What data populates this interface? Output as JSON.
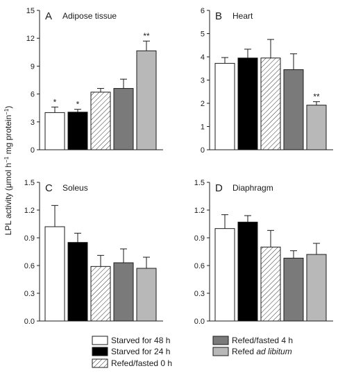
{
  "ylabel": {
    "prefix": "LPL activity (μmol h",
    "sup1": "−1",
    "middle": " mg protein",
    "sup2": "−1",
    "suffix": ")"
  },
  "series_styles": [
    {
      "fill": "#ffffff",
      "hatch": false
    },
    {
      "fill": "#000000",
      "hatch": false
    },
    {
      "fill": "#ffffff",
      "hatch": true
    },
    {
      "fill": "#7a7a7a",
      "hatch": false
    },
    {
      "fill": "#b8b8b8",
      "hatch": false
    }
  ],
  "legend": {
    "items": [
      {
        "text": "Starved for 48 h",
        "italic": ""
      },
      {
        "text": "Starved for 24 h",
        "italic": ""
      },
      {
        "text": "Refed/fasted 0 h",
        "italic": ""
      },
      {
        "text": "Refed/fasted 4 h",
        "italic": ""
      },
      {
        "text": "Refed ",
        "italic": "ad libitum"
      }
    ]
  },
  "chart_data": [
    {
      "type": "bar",
      "letter": "A",
      "title": "Adipose tissue",
      "ylim": [
        0,
        15
      ],
      "yticks": [
        "0",
        "3",
        "6",
        "9",
        "12",
        "15"
      ],
      "values": [
        4.0,
        4.05,
        6.2,
        6.6,
        10.65
      ],
      "errors": [
        0.6,
        0.3,
        0.4,
        1.0,
        1.05
      ],
      "annotations": [
        "*",
        "*",
        "",
        "",
        "**"
      ]
    },
    {
      "type": "bar",
      "letter": "B",
      "title": "Heart",
      "ylim": [
        0,
        6
      ],
      "yticks": [
        "0",
        "1",
        "2",
        "3",
        "4",
        "5",
        "6"
      ],
      "values": [
        3.72,
        3.95,
        3.95,
        3.45,
        1.92
      ],
      "errors": [
        0.25,
        0.38,
        0.8,
        0.68,
        0.15
      ],
      "annotations": [
        "",
        "",
        "",
        "",
        "**"
      ]
    },
    {
      "type": "bar",
      "letter": "C",
      "title": "Soleus",
      "ylim": [
        0,
        1.5
      ],
      "yticks": [
        "0.0",
        "0.3",
        "0.6",
        "0.9",
        "1.2",
        "1.5"
      ],
      "values": [
        1.02,
        0.85,
        0.59,
        0.63,
        0.57
      ],
      "errors": [
        0.23,
        0.1,
        0.12,
        0.15,
        0.12
      ],
      "annotations": [
        "",
        "",
        "",
        "",
        ""
      ]
    },
    {
      "type": "bar",
      "letter": "D",
      "title": "Diaphragm",
      "ylim": [
        0,
        1.5
      ],
      "yticks": [
        "0.0",
        "0.3",
        "0.6",
        "0.9",
        "1.2",
        "1.5"
      ],
      "values": [
        1.0,
        1.07,
        0.8,
        0.68,
        0.72
      ],
      "errors": [
        0.15,
        0.07,
        0.18,
        0.08,
        0.12
      ],
      "annotations": [
        "",
        "",
        "",
        "",
        ""
      ]
    }
  ]
}
